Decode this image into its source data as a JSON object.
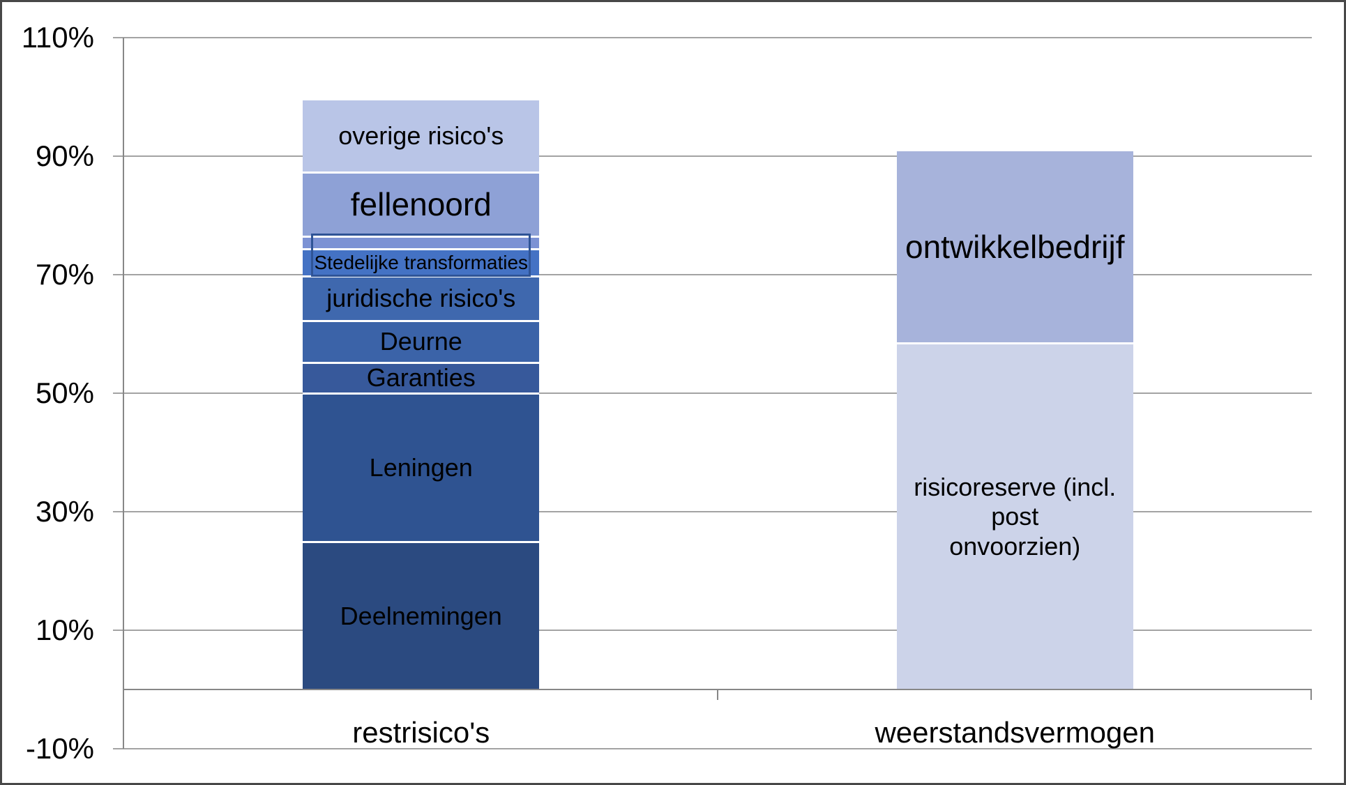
{
  "figure": {
    "background": "#ffffff",
    "border_color": "#484848",
    "gridline_color": "#a3a3a3",
    "axis_color": "#878787",
    "text_color": "#000000"
  },
  "chart_data": {
    "type": "bar",
    "stacked": true,
    "title": "",
    "xlabel": "",
    "ylabel": "",
    "legend": "none",
    "grid": true,
    "y_axis": {
      "min": -10,
      "max": 110,
      "step": 20,
      "tick_values": [
        110,
        90,
        70,
        50,
        30,
        10,
        -10
      ],
      "tick_labels": [
        "110%",
        "90%",
        "70%",
        "50%",
        "30%",
        "10%",
        "-10%"
      ]
    },
    "categories": [
      "restrisico's",
      "weerstandsvermogen"
    ],
    "bars": [
      {
        "category": "restrisico's",
        "total_percent": 99.4,
        "segments": [
          {
            "label": "Deelnemingen",
            "value": 25.1,
            "color": "#2b4a80",
            "label_size": "normal"
          },
          {
            "label": "Leningen",
            "value": 25.0,
            "color": "#2f5391",
            "label_size": "normal"
          },
          {
            "label": "Garanties",
            "value": 5.2,
            "color": "#37599b",
            "label_size": "normal"
          },
          {
            "label": "Deurne",
            "value": 7.0,
            "color": "#3b63a8",
            "label_size": "normal"
          },
          {
            "label": "juridische risico's",
            "value": 7.6,
            "color": "#3f68ae",
            "label_size": "normal"
          },
          {
            "label": "Stedelijke transformaties",
            "value": 4.6,
            "color": "#4472c4",
            "label_size": "small"
          },
          {
            "label": "",
            "value": 2.1,
            "color": "#7c92d4",
            "label_size": "normal"
          },
          {
            "label": "fellenoord",
            "value": 10.8,
            "color": "#8ea1d6",
            "label_size": "large"
          },
          {
            "label": "overige risico's",
            "value": 12.0,
            "color": "#b9c5e7",
            "label_size": "normal"
          }
        ]
      },
      {
        "category": "weerstandsvermogen",
        "total_percent": 90.8,
        "segments": [
          {
            "label": "risicoreserve (incl. post onvoorzien)",
            "label_lines": [
              "risicoreserve (incl. post",
              "onvoorzien)"
            ],
            "value": 58.6,
            "color": "#ccd3e9",
            "label_size": "normal"
          },
          {
            "label": "ontwikkelbedrijf",
            "value": 32.2,
            "color": "#a7b3db",
            "label_size": "large"
          }
        ]
      }
    ],
    "annotations": [
      {
        "name": "highlight-box",
        "target": "Stedelijke transformaties",
        "bar_index": 0,
        "from_value": 69.7,
        "to_value": 76.9,
        "border_color": "#2f5496"
      }
    ]
  }
}
